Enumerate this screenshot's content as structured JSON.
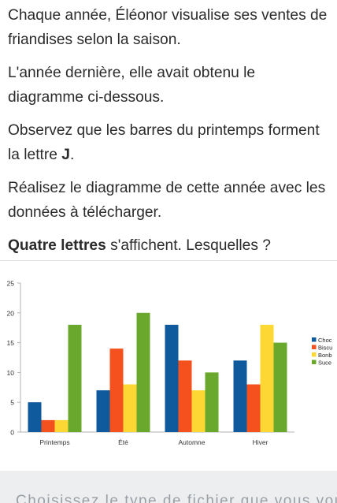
{
  "text": {
    "p1": "Chaque année, Éléonor visualise ses ventes de friandises selon la saison.",
    "p2": "L'année dernière, elle avait obtenu le diagramme ci-dessous.",
    "p3_pre": "Observez que les barres du printemps forment la lettre ",
    "p3_bold": "J",
    "p3_post": ".",
    "p4": "Réalisez le diagramme de cette année avec les données à télécharger.",
    "p5_bold": "Quatre lettres",
    "p5_post": " s'affichent. Lesquelles ?",
    "footer": "Choisissez le type de fichier que vous voulez"
  },
  "chart_data": {
    "type": "bar",
    "categories": [
      "Printemps",
      "Été",
      "Automne",
      "Hiver"
    ],
    "series": [
      {
        "name": "Choc",
        "color": "#0e5a9c",
        "values": [
          5,
          7,
          18,
          12
        ]
      },
      {
        "name": "Biscu",
        "color": "#f4511e",
        "values": [
          2,
          14,
          12,
          8
        ]
      },
      {
        "name": "Bonb",
        "color": "#fdd835",
        "values": [
          2,
          8,
          7,
          18
        ]
      },
      {
        "name": "Suce",
        "color": "#6aa82d",
        "values": [
          18,
          20,
          10,
          15
        ]
      }
    ],
    "ylim": [
      0,
      25
    ],
    "yticks": [
      0,
      5,
      10,
      15,
      20,
      25
    ],
    "grid": false,
    "legend": "right"
  }
}
